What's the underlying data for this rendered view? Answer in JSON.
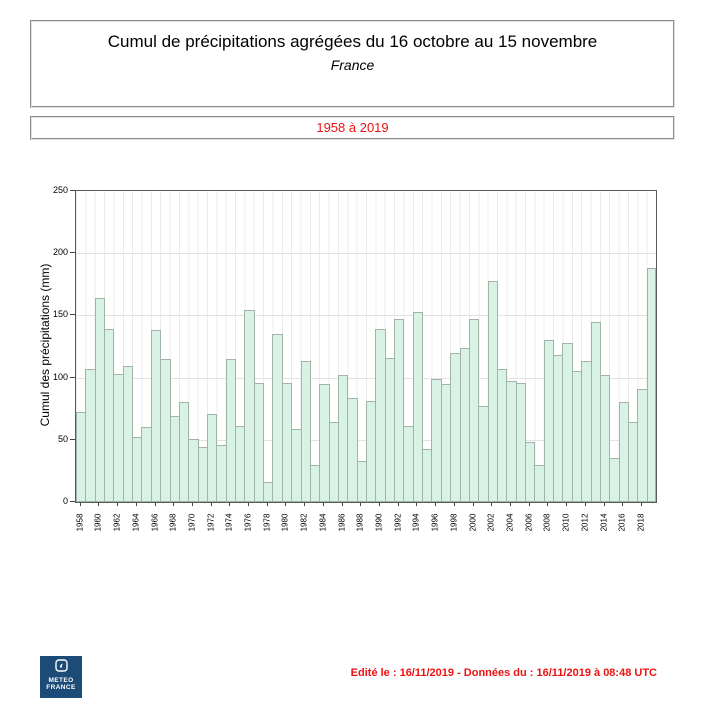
{
  "header": {
    "title": "Cumul de précipitations agrégées du 16 octobre au 15 novembre",
    "subtitle": "France",
    "period": "1958 à 2019"
  },
  "chart_data": {
    "type": "bar",
    "title": "Cumul de précipitations agrégées du 16 octobre au 15 novembre",
    "region": "France",
    "period": "1958 à 2019",
    "xlabel": "",
    "ylabel": "Cumul des précipitations (mm)",
    "ylim": [
      0,
      250
    ],
    "yticks": [
      0,
      50,
      100,
      150,
      200,
      250
    ],
    "x_label_step": 2,
    "grid": true,
    "legend_position": "none",
    "bar_fill_color": "#d8f3e5",
    "bar_border_color": "#a2b3a7",
    "years": [
      1958,
      1959,
      1960,
      1961,
      1962,
      1963,
      1964,
      1965,
      1966,
      1967,
      1968,
      1969,
      1970,
      1971,
      1972,
      1973,
      1974,
      1975,
      1976,
      1977,
      1978,
      1979,
      1980,
      1981,
      1982,
      1983,
      1984,
      1985,
      1986,
      1987,
      1988,
      1989,
      1990,
      1991,
      1992,
      1993,
      1994,
      1995,
      1996,
      1997,
      1998,
      1999,
      2000,
      2001,
      2002,
      2003,
      2004,
      2005,
      2006,
      2007,
      2008,
      2009,
      2010,
      2011,
      2012,
      2013,
      2014,
      2015,
      2016,
      2017,
      2018,
      2019
    ],
    "values": [
      72,
      107,
      164,
      139,
      103,
      109,
      52,
      60,
      138,
      115,
      69,
      80,
      51,
      44,
      71,
      46,
      115,
      61,
      154,
      96,
      16,
      135,
      96,
      59,
      113,
      30,
      95,
      64,
      102,
      84,
      33,
      81,
      139,
      116,
      147,
      61,
      153,
      43,
      99,
      95,
      120,
      124,
      147,
      77,
      178,
      107,
      97,
      96,
      48,
      30,
      130,
      118,
      128,
      105,
      113,
      145,
      102,
      35,
      80,
      64,
      91,
      188
    ]
  },
  "footer": {
    "logo_line1": "METEO",
    "logo_line2": "FRANCE",
    "logo_color": "#1d4b77",
    "note": "Edité le : 16/11/2019 - Données du : 16/11/2019 à 08:48 UTC",
    "note_color": "#ee1111"
  },
  "colors": {
    "accent_red": "#ee1111",
    "plot_border": "#5a5a5a",
    "grid_line": "#e2e2e2"
  }
}
